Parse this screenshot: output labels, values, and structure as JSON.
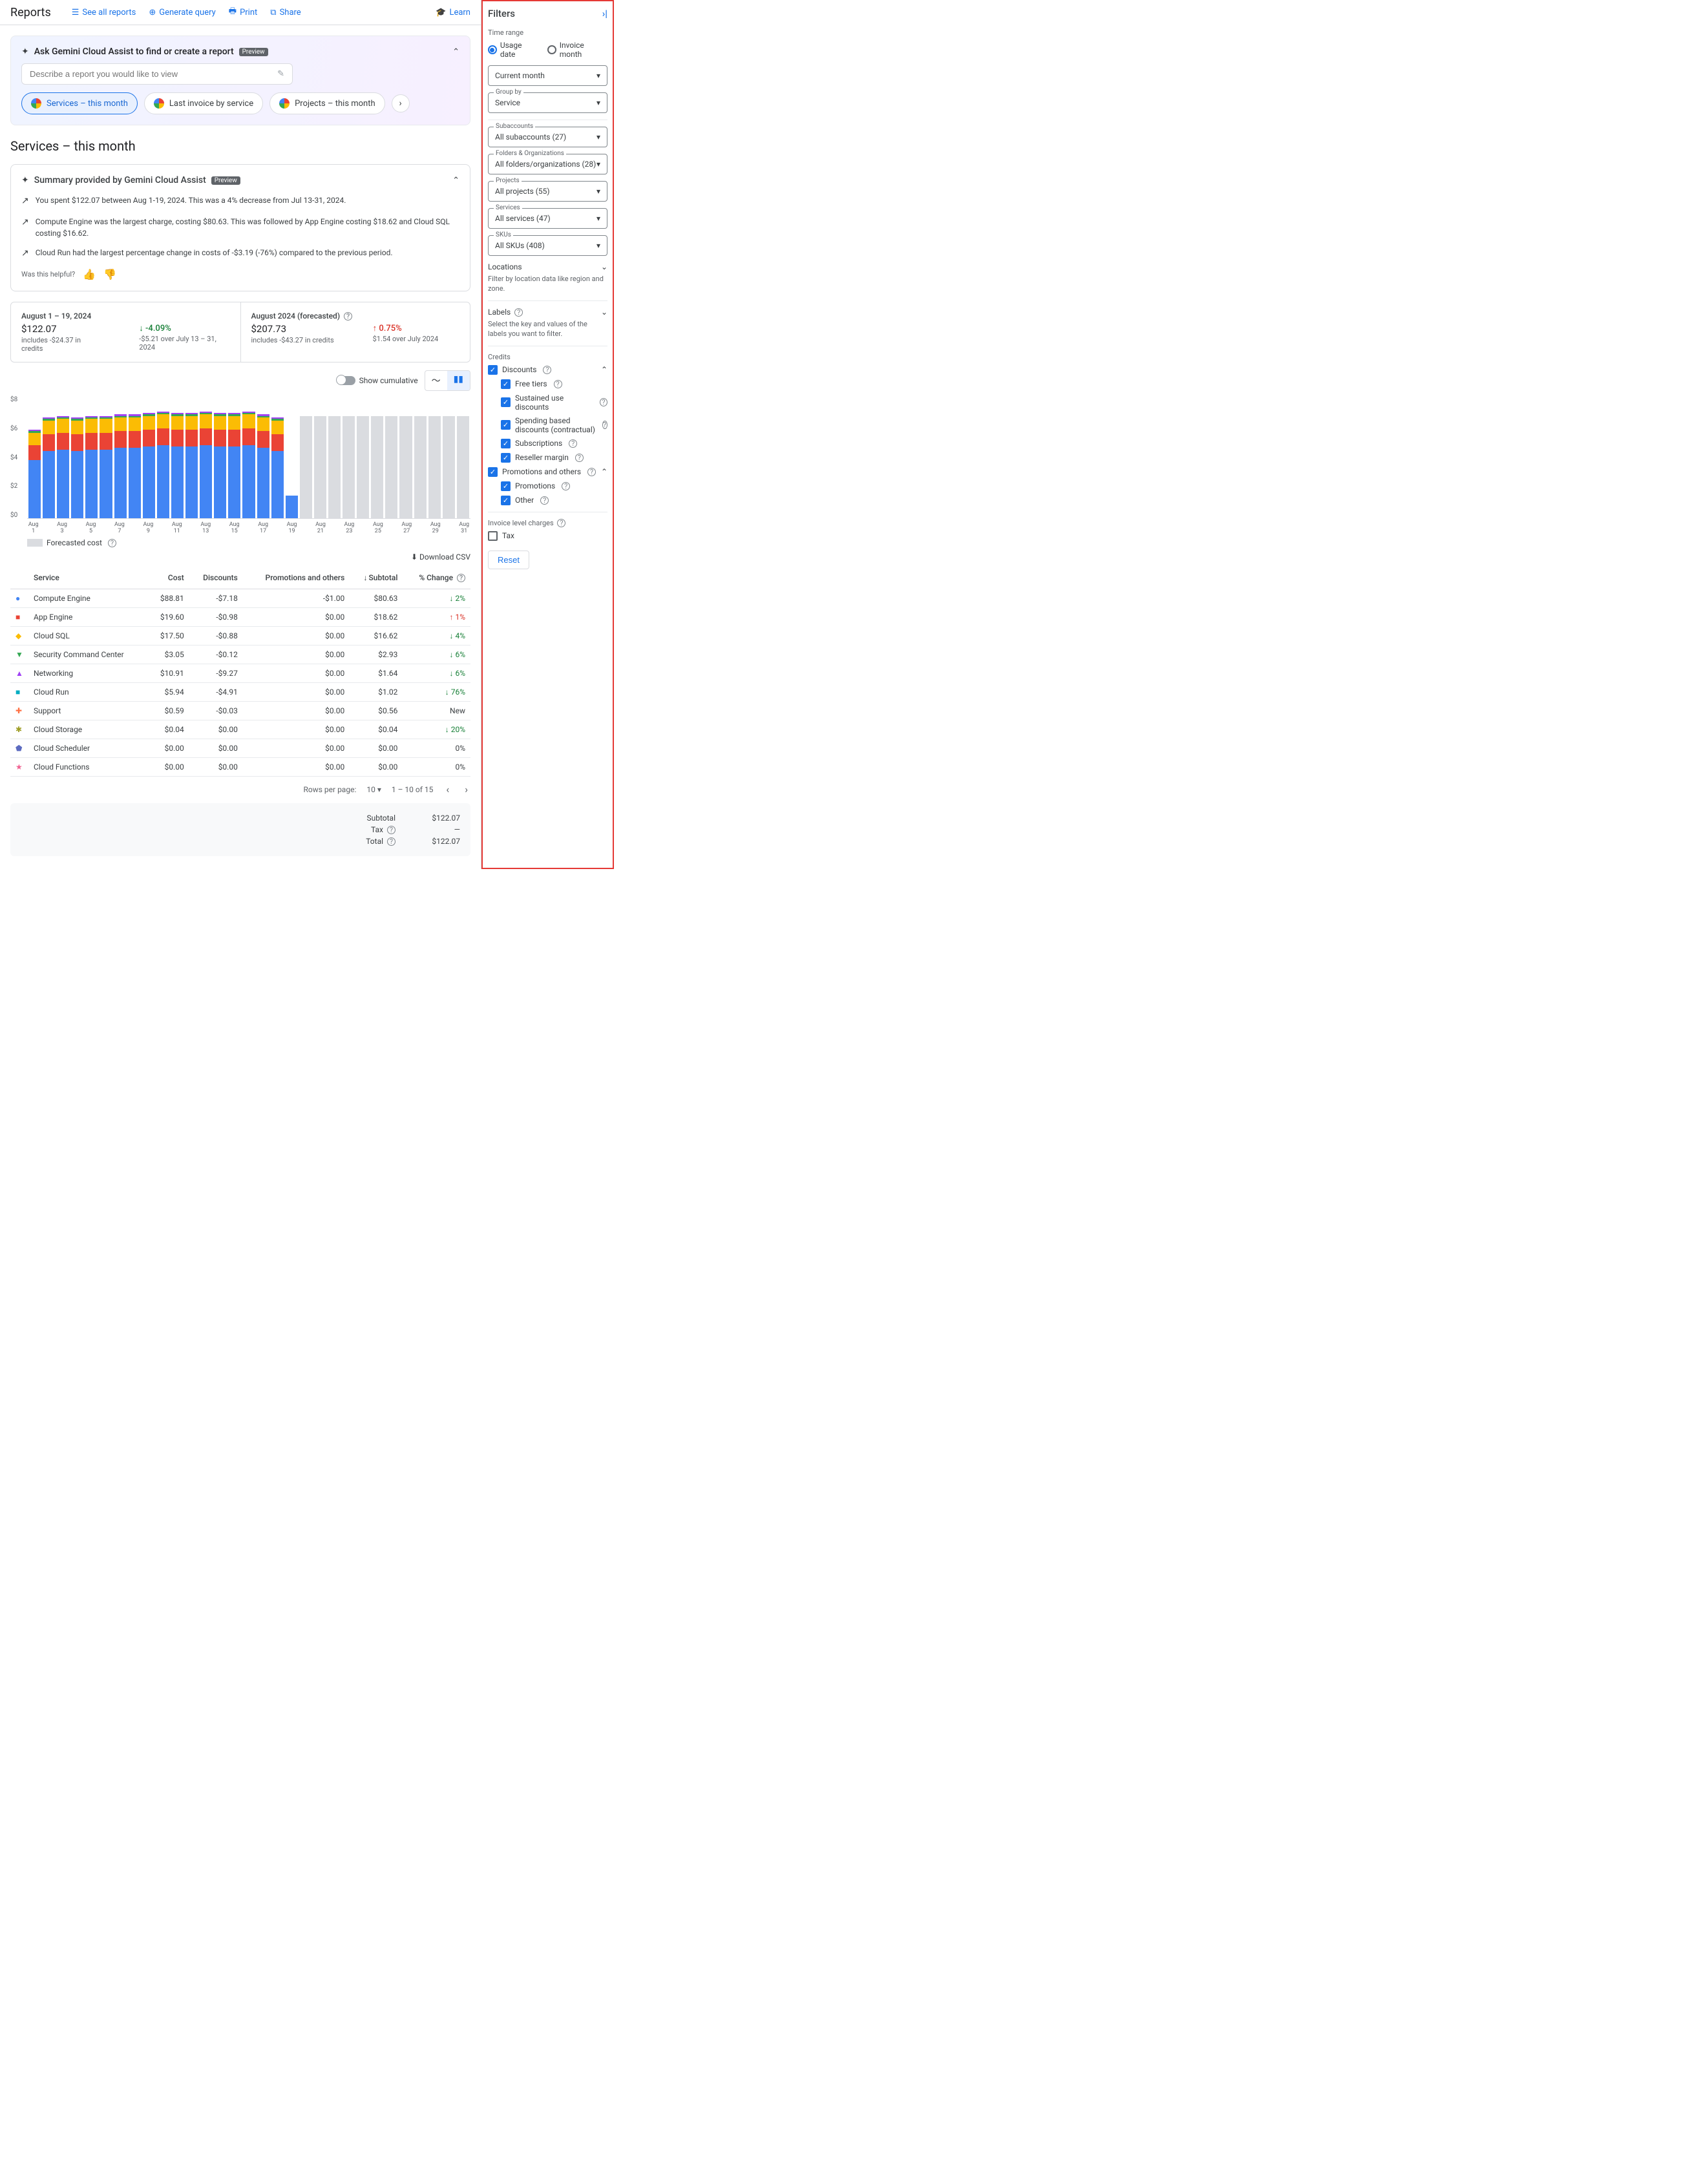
{
  "header": {
    "title": "Reports",
    "links": {
      "seeAll": "See all reports",
      "generate": "Generate query",
      "print": "Print",
      "share": "Share",
      "learn": "Learn"
    }
  },
  "gemini": {
    "title": "Ask Gemini Cloud Assist to find or create a report",
    "preview": "Preview",
    "placeholder": "Describe a report you would like to view",
    "chips": [
      "Services – this month",
      "Last invoice by service",
      "Projects – this month"
    ]
  },
  "sectionTitle": "Services – this month",
  "summary": {
    "title": "Summary provided by Gemini Cloud Assist",
    "preview": "Preview",
    "insights": [
      "You spent $122.07 between Aug 1-19, 2024. This was a 4% decrease from Jul 13-31, 2024.",
      "Compute Engine was the largest charge, costing $80.63. This was followed by App Engine costing $18.62 and Cloud SQL costing $16.62.",
      "Cloud Run had the largest percentage change in costs of -$3.19 (-76%) compared to the previous period."
    ],
    "helpful": "Was this helpful?"
  },
  "stats": {
    "left": {
      "range": "August 1 – 19, 2024",
      "amount": "$122.07",
      "credits": "includes -$24.37 in credits",
      "change": "-4.09%",
      "changeSub": "-$5.21 over July 13 – 31, 2024"
    },
    "right": {
      "range": "August 2024 (forecasted)",
      "amount": "$207.73",
      "credits": "includes -$43.27 in credits",
      "change": "0.75%",
      "changeSub": "$1.54 over July 2024"
    }
  },
  "chart": {
    "showCumulative": "Show cumulative",
    "yTicks": [
      "$8",
      "$6",
      "$4",
      "$2",
      "$0"
    ],
    "xLabels": [
      "Aug 1",
      "",
      "Aug 3",
      "",
      "Aug 5",
      "",
      "Aug 7",
      "",
      "Aug 9",
      "",
      "Aug 11",
      "",
      "Aug 13",
      "",
      "Aug 15",
      "",
      "Aug 17",
      "",
      "Aug 19",
      "",
      "Aug 21",
      "",
      "Aug 23",
      "",
      "Aug 25",
      "",
      "Aug 27",
      "",
      "Aug 29",
      "",
      "Aug 31"
    ],
    "colors": {
      "compute": "#4285f4",
      "appengine": "#ea4335",
      "sql": "#fbbc04",
      "other": "#34a853",
      "net": "#a142f4",
      "forecast": "#dadce0"
    },
    "bars": [
      {
        "total": 5.8,
        "stack": [
          3.8,
          1.0,
          0.8,
          0.1,
          0.1
        ],
        "forecast": false
      },
      {
        "total": 6.6,
        "stack": [
          4.4,
          1.1,
          0.9,
          0.1,
          0.1
        ],
        "forecast": false
      },
      {
        "total": 6.7,
        "stack": [
          4.5,
          1.1,
          0.9,
          0.1,
          0.1
        ],
        "forecast": false
      },
      {
        "total": 6.6,
        "stack": [
          4.4,
          1.1,
          0.9,
          0.1,
          0.1
        ],
        "forecast": false
      },
      {
        "total": 6.7,
        "stack": [
          4.5,
          1.1,
          0.9,
          0.1,
          0.1
        ],
        "forecast": false
      },
      {
        "total": 6.7,
        "stack": [
          4.5,
          1.1,
          0.9,
          0.1,
          0.1
        ],
        "forecast": false
      },
      {
        "total": 6.8,
        "stack": [
          4.6,
          1.1,
          0.9,
          0.1,
          0.1
        ],
        "forecast": false
      },
      {
        "total": 6.8,
        "stack": [
          4.6,
          1.1,
          0.9,
          0.1,
          0.1
        ],
        "forecast": false
      },
      {
        "total": 6.9,
        "stack": [
          4.7,
          1.1,
          0.9,
          0.1,
          0.1
        ],
        "forecast": false
      },
      {
        "total": 7.0,
        "stack": [
          4.8,
          1.1,
          0.9,
          0.1,
          0.1
        ],
        "forecast": false
      },
      {
        "total": 6.9,
        "stack": [
          4.7,
          1.1,
          0.9,
          0.1,
          0.1
        ],
        "forecast": false
      },
      {
        "total": 6.9,
        "stack": [
          4.7,
          1.1,
          0.9,
          0.1,
          0.1
        ],
        "forecast": false
      },
      {
        "total": 7.0,
        "stack": [
          4.8,
          1.1,
          0.9,
          0.1,
          0.1
        ],
        "forecast": false
      },
      {
        "total": 6.9,
        "stack": [
          4.7,
          1.1,
          0.9,
          0.1,
          0.1
        ],
        "forecast": false
      },
      {
        "total": 6.9,
        "stack": [
          4.7,
          1.1,
          0.9,
          0.1,
          0.1
        ],
        "forecast": false
      },
      {
        "total": 7.0,
        "stack": [
          4.8,
          1.1,
          0.9,
          0.1,
          0.1
        ],
        "forecast": false
      },
      {
        "total": 6.8,
        "stack": [
          4.6,
          1.1,
          0.9,
          0.1,
          0.1
        ],
        "forecast": false
      },
      {
        "total": 6.6,
        "stack": [
          4.4,
          1.1,
          0.9,
          0.1,
          0.1
        ],
        "forecast": false
      },
      {
        "total": 1.5,
        "stack": [
          1.5
        ],
        "forecast": false
      },
      {
        "total": 6.7,
        "forecast": true
      },
      {
        "total": 6.7,
        "forecast": true
      },
      {
        "total": 6.7,
        "forecast": true
      },
      {
        "total": 6.7,
        "forecast": true
      },
      {
        "total": 6.7,
        "forecast": true
      },
      {
        "total": 6.7,
        "forecast": true
      },
      {
        "total": 6.7,
        "forecast": true
      },
      {
        "total": 6.7,
        "forecast": true
      },
      {
        "total": 6.7,
        "forecast": true
      },
      {
        "total": 6.7,
        "forecast": true
      },
      {
        "total": 6.7,
        "forecast": true
      },
      {
        "total": 6.7,
        "forecast": true
      }
    ],
    "legendForecast": "Forecasted cost"
  },
  "downloadCSV": "Download CSV",
  "table": {
    "headers": {
      "service": "Service",
      "cost": "Cost",
      "discounts": "Discounts",
      "promos": "Promotions and others",
      "subtotal": "Subtotal",
      "change": "% Change"
    },
    "rows": [
      {
        "dot": "#4285f4",
        "shape": "●",
        "name": "Compute Engine",
        "cost": "$88.81",
        "disc": "-$7.18",
        "promo": "-$1.00",
        "sub": "$80.63",
        "chArrow": "↓",
        "chColor": "green",
        "ch": "2%"
      },
      {
        "dot": "#ea4335",
        "shape": "■",
        "name": "App Engine",
        "cost": "$19.60",
        "disc": "-$0.98",
        "promo": "$0.00",
        "sub": "$18.62",
        "chArrow": "↑",
        "chColor": "red",
        "ch": "1%"
      },
      {
        "dot": "#fbbc04",
        "shape": "◆",
        "name": "Cloud SQL",
        "cost": "$17.50",
        "disc": "-$0.88",
        "promo": "$0.00",
        "sub": "$16.62",
        "chArrow": "↓",
        "chColor": "green",
        "ch": "4%"
      },
      {
        "dot": "#34a853",
        "shape": "▼",
        "name": "Security Command Center",
        "cost": "$3.05",
        "disc": "-$0.12",
        "promo": "$0.00",
        "sub": "$2.93",
        "chArrow": "↓",
        "chColor": "green",
        "ch": "6%"
      },
      {
        "dot": "#a142f4",
        "shape": "▲",
        "name": "Networking",
        "cost": "$10.91",
        "disc": "-$9.27",
        "promo": "$0.00",
        "sub": "$1.64",
        "chArrow": "↓",
        "chColor": "green",
        "ch": "6%"
      },
      {
        "dot": "#00acc1",
        "shape": "■",
        "name": "Cloud Run",
        "cost": "$5.94",
        "disc": "-$4.91",
        "promo": "$0.00",
        "sub": "$1.02",
        "chArrow": "↓",
        "chColor": "green",
        "ch": "76%"
      },
      {
        "dot": "#ff7043",
        "shape": "✚",
        "name": "Support",
        "cost": "$0.59",
        "disc": "-$0.03",
        "promo": "$0.00",
        "sub": "$0.56",
        "chArrow": "",
        "chColor": "",
        "ch": "New"
      },
      {
        "dot": "#9e9d24",
        "shape": "✱",
        "name": "Cloud Storage",
        "cost": "$0.04",
        "disc": "$0.00",
        "promo": "$0.00",
        "sub": "$0.04",
        "chArrow": "↓",
        "chColor": "green",
        "ch": "20%"
      },
      {
        "dot": "#5c6bc0",
        "shape": "⬟",
        "name": "Cloud Scheduler",
        "cost": "$0.00",
        "disc": "$0.00",
        "promo": "$0.00",
        "sub": "$0.00",
        "chArrow": "",
        "chColor": "",
        "ch": "0%"
      },
      {
        "dot": "#f06292",
        "shape": "★",
        "name": "Cloud Functions",
        "cost": "$0.00",
        "disc": "$0.00",
        "promo": "$0.00",
        "sub": "$0.00",
        "chArrow": "",
        "chColor": "",
        "ch": "0%"
      }
    ],
    "pager": {
      "rowsLabel": "Rows per page:",
      "rows": "10",
      "range": "1 – 10 of 15"
    }
  },
  "totals": {
    "subtotalLabel": "Subtotal",
    "subtotal": "$122.07",
    "taxLabel": "Tax",
    "tax": "—",
    "totalLabel": "Total",
    "total": "$122.07"
  },
  "filters": {
    "title": "Filters",
    "timeRange": "Time range",
    "usageDate": "Usage date",
    "invoiceMonth": "Invoice month",
    "currentMonth": "Current month",
    "groupBy": "Group by",
    "groupByVal": "Service",
    "subaccounts": "Subaccounts",
    "subaccountsVal": "All subaccounts (27)",
    "folders": "Folders & Organizations",
    "foldersVal": "All folders/organizations (28)",
    "projects": "Projects",
    "projectsVal": "All projects (55)",
    "services": "Services",
    "servicesVal": "All services (47)",
    "skus": "SKUs",
    "skusVal": "All SKUs (408)",
    "locations": "Locations",
    "locationsDesc": "Filter by location data like region and zone.",
    "labels": "Labels",
    "labelsDesc": "Select the key and values of the labels you want to filter.",
    "credits": "Credits",
    "discounts": "Discounts",
    "freeTiers": "Free tiers",
    "sustained": "Sustained use discounts",
    "spending": "Spending based discounts (contractual)",
    "subscriptions": "Subscriptions",
    "reseller": "Reseller margin",
    "promos": "Promotions and others",
    "promotions": "Promotions",
    "other": "Other",
    "invoice": "Invoice level charges",
    "tax": "Tax",
    "reset": "Reset"
  }
}
